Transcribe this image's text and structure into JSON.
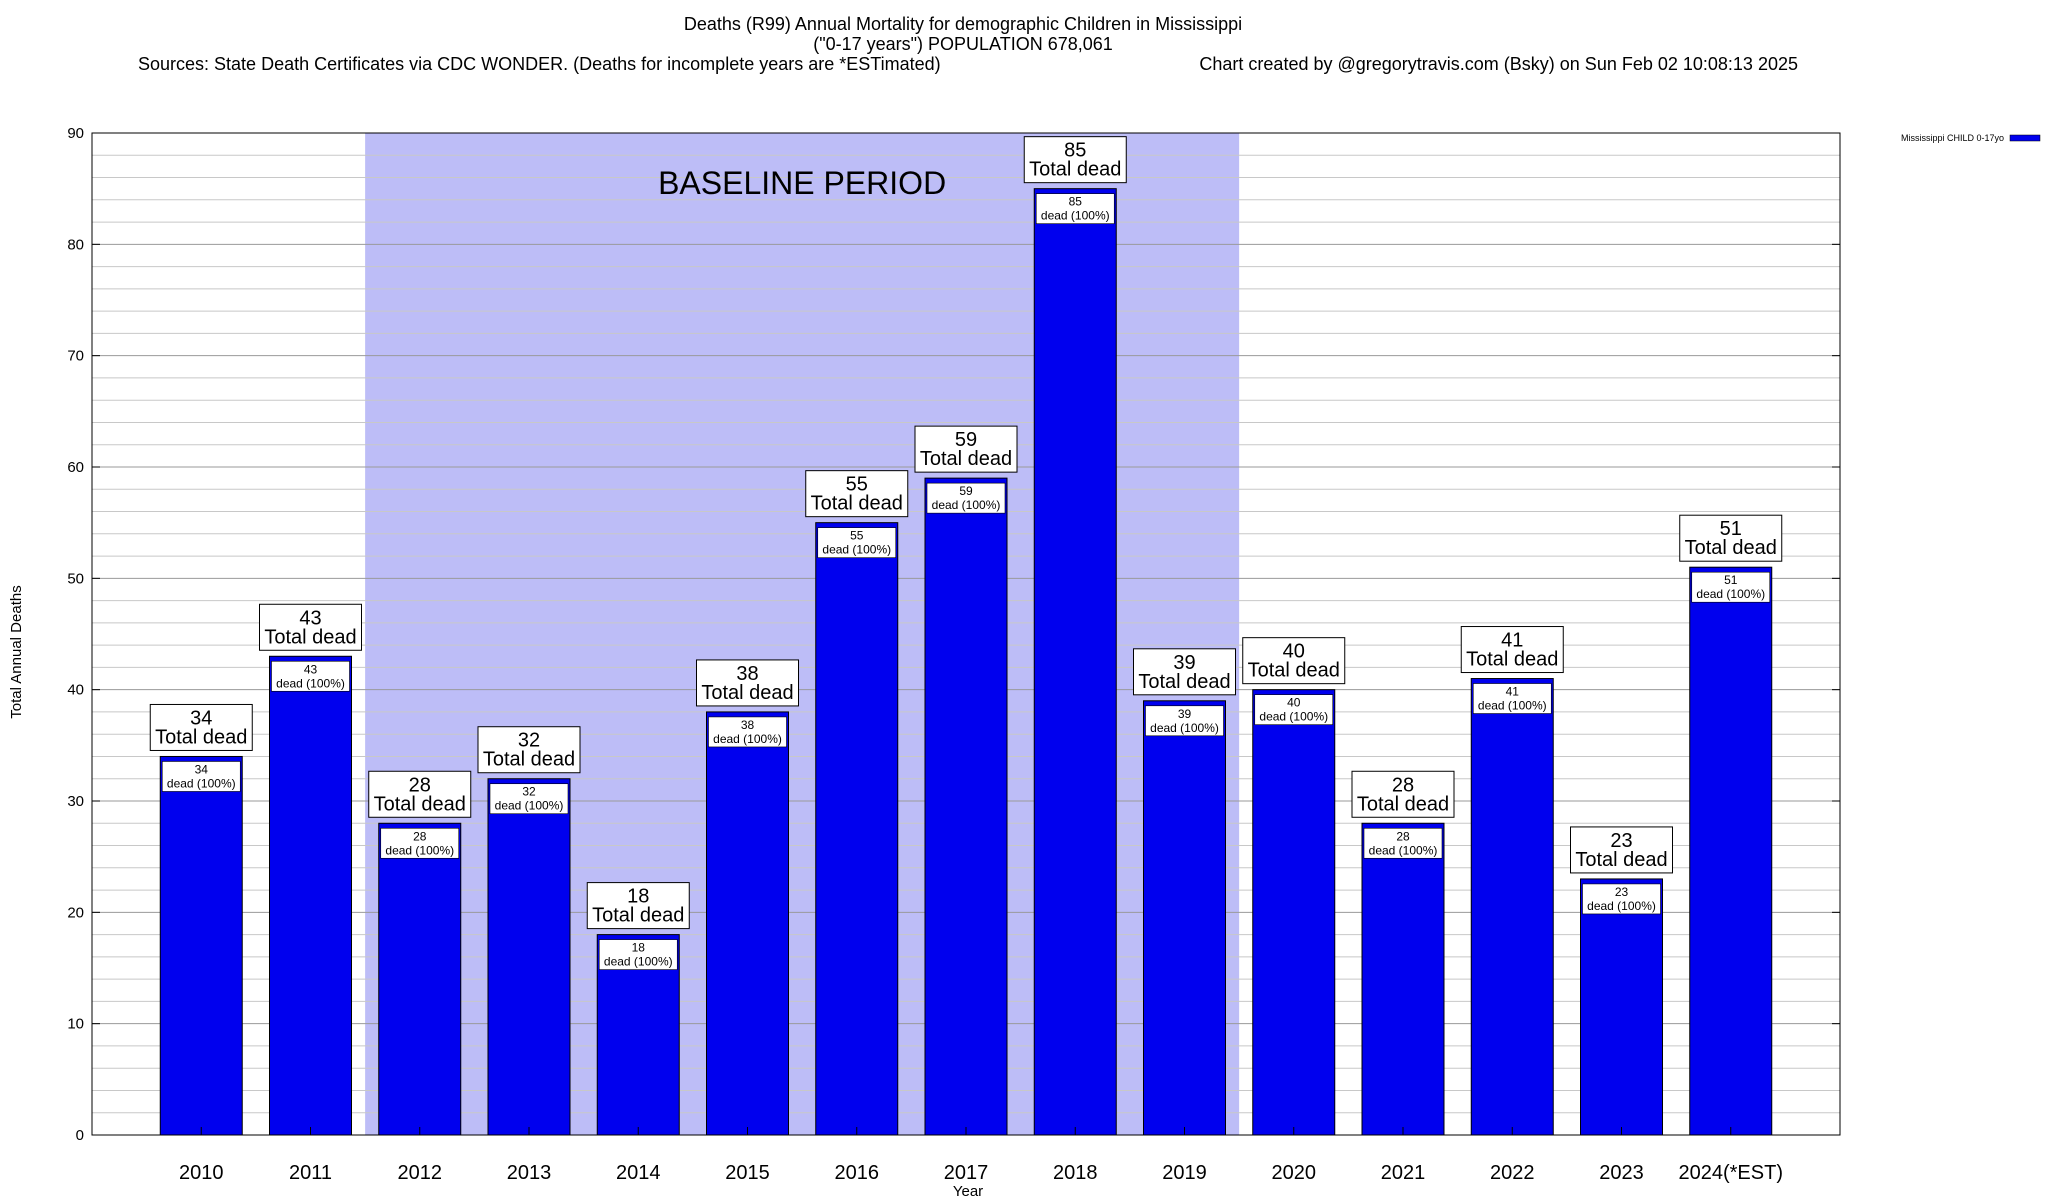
{
  "chart_data": {
    "type": "bar",
    "title_lines": [
      "Deaths (R99) Annual Mortality for demographic Children in Mississippi",
      "(\"0-17 years\") POPULATION 678,061"
    ],
    "sources": "Sources: State Death Certificates via CDC WONDER. (Deaths for incomplete years are *ESTimated)",
    "credit": "Chart created by @gregorytravis.com (Bsky) on Sun Feb 02 10:08:13 2025",
    "xlabel": "Year",
    "ylabel": "Total Annual Deaths",
    "ylim": [
      0,
      90
    ],
    "major_ticks": [
      0,
      10,
      20,
      30,
      40,
      50,
      60,
      70,
      80,
      90
    ],
    "minor_step": 2,
    "categories": [
      "2010",
      "2011",
      "2012",
      "2013",
      "2014",
      "2015",
      "2016",
      "2017",
      "2018",
      "2019",
      "2020",
      "2021",
      "2022",
      "2023",
      "2024(*EST)"
    ],
    "series": [
      {
        "name": "Mississippi CHILD 0-17yo",
        "color": "#0000ee",
        "values": [
          34,
          43,
          28,
          32,
          18,
          38,
          55,
          59,
          85,
          39,
          40,
          28,
          41,
          23,
          51
        ]
      }
    ],
    "label_total_suffix": "Total dead",
    "label_inner_suffix": "dead (100%)",
    "baseline": {
      "label": "BASELINE PERIOD",
      "from": "2012",
      "to": "2019",
      "color": "#bdbdf7"
    },
    "legend": {
      "label": "Mississippi CHILD 0-17yo",
      "position": "top-right"
    }
  }
}
